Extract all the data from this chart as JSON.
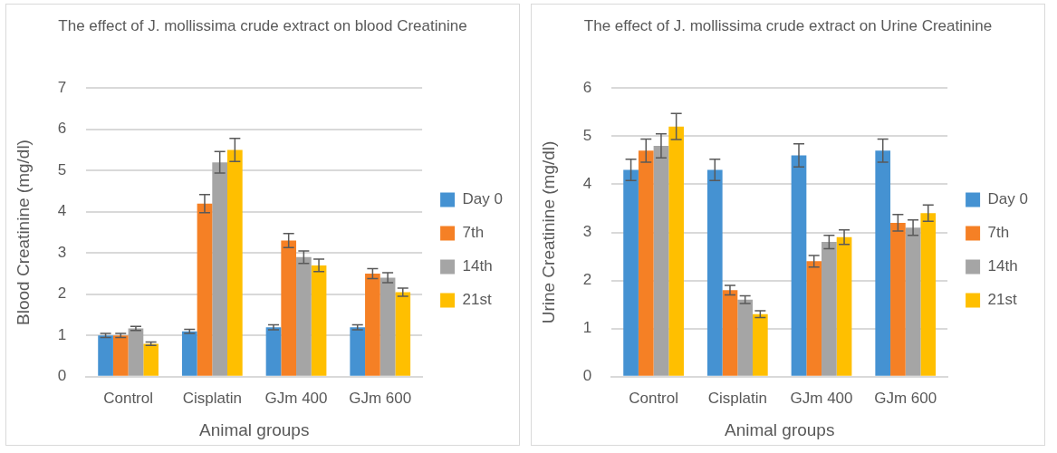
{
  "chart_data": [
    {
      "type": "bar",
      "title": "The effect of J. mollissima crude extract on blood Creatinine",
      "xlabel": "Animal groups",
      "ylabel": "Blood Creatinine (mg/dl)",
      "categories": [
        "Control",
        "Cisplatin",
        "GJm 400",
        "GJm 600"
      ],
      "series": [
        {
          "name": "Day 0",
          "color": "#4592d2",
          "values": [
            1.0,
            1.1,
            1.2,
            1.2
          ],
          "errors": [
            0.05,
            0.05,
            0.06,
            0.06
          ]
        },
        {
          "name": "7th",
          "color": "#f58025",
          "values": [
            1.0,
            4.2,
            3.3,
            2.5
          ],
          "errors": [
            0.05,
            0.22,
            0.17,
            0.12
          ]
        },
        {
          "name": "14th",
          "color": "#a5a5a5",
          "values": [
            1.17,
            5.2,
            2.9,
            2.4
          ],
          "errors": [
            0.05,
            0.26,
            0.15,
            0.12
          ]
        },
        {
          "name": "21st",
          "color": "#ffbf00",
          "values": [
            0.8,
            5.5,
            2.7,
            2.05
          ],
          "errors": [
            0.04,
            0.28,
            0.15,
            0.1
          ]
        }
      ],
      "ylim": [
        0,
        7
      ],
      "yticks": [
        0,
        1,
        2,
        3,
        4,
        5,
        6,
        7
      ],
      "grid": "y",
      "legend": "right"
    },
    {
      "type": "bar",
      "title": "The effect of J. mollissima crude extract on Urine Creatinine",
      "xlabel": "Animal groups",
      "ylabel": "Urine Creatinine (mg/dl)",
      "categories": [
        "Control",
        "Cisplatin",
        "GJm 400",
        "GJm 600"
      ],
      "series": [
        {
          "name": "Day 0",
          "color": "#4592d2",
          "values": [
            4.3,
            4.3,
            4.6,
            4.7
          ],
          "errors": [
            0.22,
            0.22,
            0.24,
            0.24
          ]
        },
        {
          "name": "7th",
          "color": "#f58025",
          "values": [
            4.7,
            1.8,
            2.4,
            3.2
          ],
          "errors": [
            0.24,
            0.1,
            0.12,
            0.17
          ]
        },
        {
          "name": "14th",
          "color": "#a5a5a5",
          "values": [
            4.8,
            1.6,
            2.8,
            3.1
          ],
          "errors": [
            0.25,
            0.08,
            0.14,
            0.16
          ]
        },
        {
          "name": "21st",
          "color": "#ffbf00",
          "values": [
            5.2,
            1.3,
            2.9,
            3.4
          ],
          "errors": [
            0.27,
            0.07,
            0.15,
            0.17
          ]
        }
      ],
      "ylim": [
        0,
        6
      ],
      "yticks": [
        0,
        1,
        2,
        3,
        4,
        5,
        6
      ],
      "grid": "y",
      "legend": "right"
    }
  ]
}
